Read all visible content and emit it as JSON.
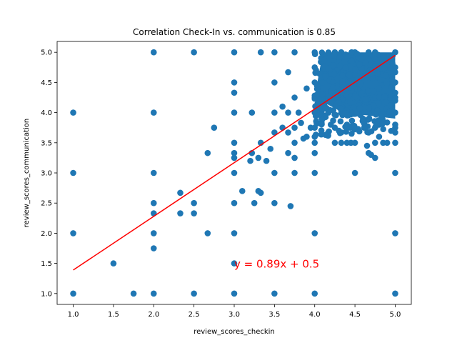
{
  "chart_data": {
    "type": "scatter",
    "title": "Correlation Check-In vs. communication is 0.85",
    "xlabel": "review_scores_checkin",
    "ylabel": "review_scores_communication",
    "xlim": [
      0.8,
      5.2
    ],
    "ylim": [
      0.82,
      5.18
    ],
    "xticks": [
      "1.0",
      "1.5",
      "2.0",
      "2.5",
      "3.0",
      "3.5",
      "4.0",
      "4.5",
      "5.0"
    ],
    "yticks": [
      "1.0",
      "1.5",
      "2.0",
      "2.5",
      "3.0",
      "3.5",
      "4.0",
      "4.5",
      "5.0"
    ],
    "grid": false,
    "point_color": "#1f77b4",
    "line_color": "#ff0000",
    "regression": {
      "slope": 0.89,
      "intercept": 0.5,
      "x_range": [
        1.0,
        5.0
      ]
    },
    "annotation": {
      "text": "y = 0.89x + 0.5",
      "x": 3.0,
      "y": 1.5,
      "color": "#ff0000"
    },
    "points": [
      [
        1,
        1
      ],
      [
        1,
        2
      ],
      [
        1,
        3
      ],
      [
        1,
        4
      ],
      [
        1.5,
        1.5
      ],
      [
        1.75,
        1
      ],
      [
        2,
        1
      ],
      [
        2,
        1.75
      ],
      [
        2,
        2
      ],
      [
        2,
        2.33
      ],
      [
        2,
        2.5
      ],
      [
        2,
        3
      ],
      [
        2,
        4
      ],
      [
        2,
        5
      ],
      [
        2.33,
        2.33
      ],
      [
        2.33,
        2.67
      ],
      [
        2.5,
        1
      ],
      [
        2.5,
        2.33
      ],
      [
        2.5,
        2.5
      ],
      [
        2.5,
        5
      ],
      [
        2.67,
        2
      ],
      [
        2.67,
        3.33
      ],
      [
        2.75,
        3.75
      ],
      [
        3,
        1
      ],
      [
        3,
        1.5
      ],
      [
        3,
        2
      ],
      [
        3,
        2.5
      ],
      [
        3,
        3
      ],
      [
        3,
        3.25
      ],
      [
        3,
        3.33
      ],
      [
        3,
        3.5
      ],
      [
        3,
        4
      ],
      [
        3,
        4.33
      ],
      [
        3,
        4.5
      ],
      [
        3,
        5
      ],
      [
        3.1,
        2.7
      ],
      [
        3.2,
        3.2
      ],
      [
        3.22,
        3.33
      ],
      [
        3.22,
        4
      ],
      [
        3.25,
        2.5
      ],
      [
        3.3,
        2.7
      ],
      [
        3.3,
        3.25
      ],
      [
        3.33,
        2.67
      ],
      [
        3.33,
        3.5
      ],
      [
        3.33,
        5
      ],
      [
        3.4,
        3.2
      ],
      [
        3.45,
        3.4
      ],
      [
        3.5,
        1
      ],
      [
        3.5,
        2.5
      ],
      [
        3.5,
        3
      ],
      [
        3.5,
        3.67
      ],
      [
        3.5,
        4
      ],
      [
        3.5,
        4.5
      ],
      [
        3.5,
        5
      ],
      [
        3.6,
        3.75
      ],
      [
        3.6,
        4.1
      ],
      [
        3.7,
        2.45
      ],
      [
        3.67,
        3.33
      ],
      [
        3.67,
        3.67
      ],
      [
        3.67,
        4
      ],
      [
        3.67,
        4.67
      ],
      [
        3.75,
        3
      ],
      [
        3.75,
        3.25
      ],
      [
        3.75,
        3.5
      ],
      [
        3.75,
        3.75
      ],
      [
        3.75,
        4.25
      ],
      [
        3.75,
        5
      ],
      [
        3.8,
        4
      ],
      [
        3.83,
        3.83
      ],
      [
        3.86,
        3.57
      ],
      [
        3.9,
        3.6
      ],
      [
        3.9,
        4.4
      ],
      [
        4,
        3.6
      ],
      [
        3.95,
        3.75
      ],
      [
        4,
        1
      ],
      [
        4,
        2
      ],
      [
        4,
        3
      ],
      [
        4,
        3.33
      ],
      [
        4,
        3.5
      ],
      [
        4,
        3.75
      ],
      [
        4,
        4
      ],
      [
        4,
        4.25
      ],
      [
        4,
        4.5
      ],
      [
        4,
        4.75
      ],
      [
        4,
        5
      ],
      [
        4.1,
        3.9
      ],
      [
        4.1,
        4.5
      ],
      [
        4.17,
        4
      ],
      [
        4.2,
        3.8
      ],
      [
        4.25,
        3.5
      ],
      [
        4.25,
        3.75
      ],
      [
        4.25,
        4.25
      ],
      [
        4.25,
        4.75
      ],
      [
        4.25,
        5
      ],
      [
        4.3,
        3.7
      ],
      [
        4.33,
        3.5
      ],
      [
        4.33,
        4
      ],
      [
        4.33,
        4.33
      ],
      [
        4.33,
        4.67
      ],
      [
        4.33,
        5
      ],
      [
        4.4,
        3.5
      ],
      [
        4.4,
        3.8
      ],
      [
        4.4,
        4.4
      ],
      [
        4.45,
        3.5
      ],
      [
        4.5,
        3
      ],
      [
        4.5,
        3.5
      ],
      [
        4.5,
        3.75
      ],
      [
        4.5,
        4
      ],
      [
        4.5,
        4.5
      ],
      [
        4.5,
        5
      ],
      [
        4.6,
        3.9
      ],
      [
        4.6,
        4.6
      ],
      [
        4.65,
        3.45
      ],
      [
        4.67,
        3.33
      ],
      [
        4.67,
        3.67
      ],
      [
        4.67,
        4
      ],
      [
        4.67,
        4.33
      ],
      [
        4.67,
        4.67
      ],
      [
        4.67,
        5
      ],
      [
        4.7,
        3.3
      ],
      [
        4.75,
        3.25
      ],
      [
        4.75,
        3.5
      ],
      [
        4.75,
        3.75
      ],
      [
        4.75,
        4
      ],
      [
        4.75,
        4.25
      ],
      [
        4.75,
        4.75
      ],
      [
        4.75,
        5
      ],
      [
        4.8,
        3.6
      ],
      [
        4.8,
        3.8
      ],
      [
        4.8,
        4.4
      ],
      [
        4.85,
        3.5
      ],
      [
        4.9,
        3.5
      ],
      [
        4.9,
        4.7
      ],
      [
        5,
        1
      ],
      [
        5,
        2
      ],
      [
        5,
        3
      ],
      [
        5,
        3.5
      ],
      [
        5,
        3.67
      ],
      [
        5,
        3.75
      ],
      [
        5,
        3.8
      ],
      [
        5,
        4
      ],
      [
        5,
        4.2
      ],
      [
        5,
        4.25
      ],
      [
        5,
        4.33
      ],
      [
        5,
        4.5
      ],
      [
        5,
        4.67
      ],
      [
        5,
        4.75
      ],
      [
        5,
        5
      ]
    ],
    "dense_region": {
      "x": [
        4.0,
        5.0
      ],
      "y": [
        3.9,
        5.0
      ]
    }
  }
}
